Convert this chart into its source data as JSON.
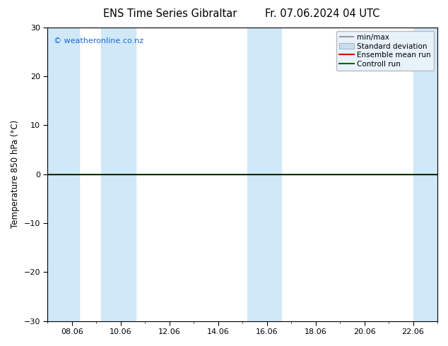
{
  "title_left": "ENS Time Series Gibraltar",
  "title_right": "Fr. 07.06.2024 04 UTC",
  "ylabel": "Temperature 850 hPa (°C)",
  "ylim": [
    -30,
    30
  ],
  "yticks": [
    -30,
    -20,
    -10,
    0,
    10,
    20,
    30
  ],
  "xtick_labels": [
    "08.06",
    "10.06",
    "12.06",
    "14.06",
    "16.06",
    "18.06",
    "20.06",
    "22.06"
  ],
  "watermark": "© weatheronline.co.nz",
  "watermark_color": "#1a6adb",
  "bg_color": "#ffffff",
  "plot_bg": "#ffffff",
  "shaded_color": "#d0e8f8",
  "ensemble_mean_color": "#dd0000",
  "control_run_color": "#006600",
  "minmax_color": "#999999",
  "stddev_color": "#c8dff0",
  "legend_labels": [
    "min/max",
    "Standard deviation",
    "Ensemble mean run",
    "Controll run"
  ],
  "title_fontsize": 10.5,
  "label_fontsize": 8.5,
  "tick_fontsize": 8,
  "legend_fontsize": 7.5
}
